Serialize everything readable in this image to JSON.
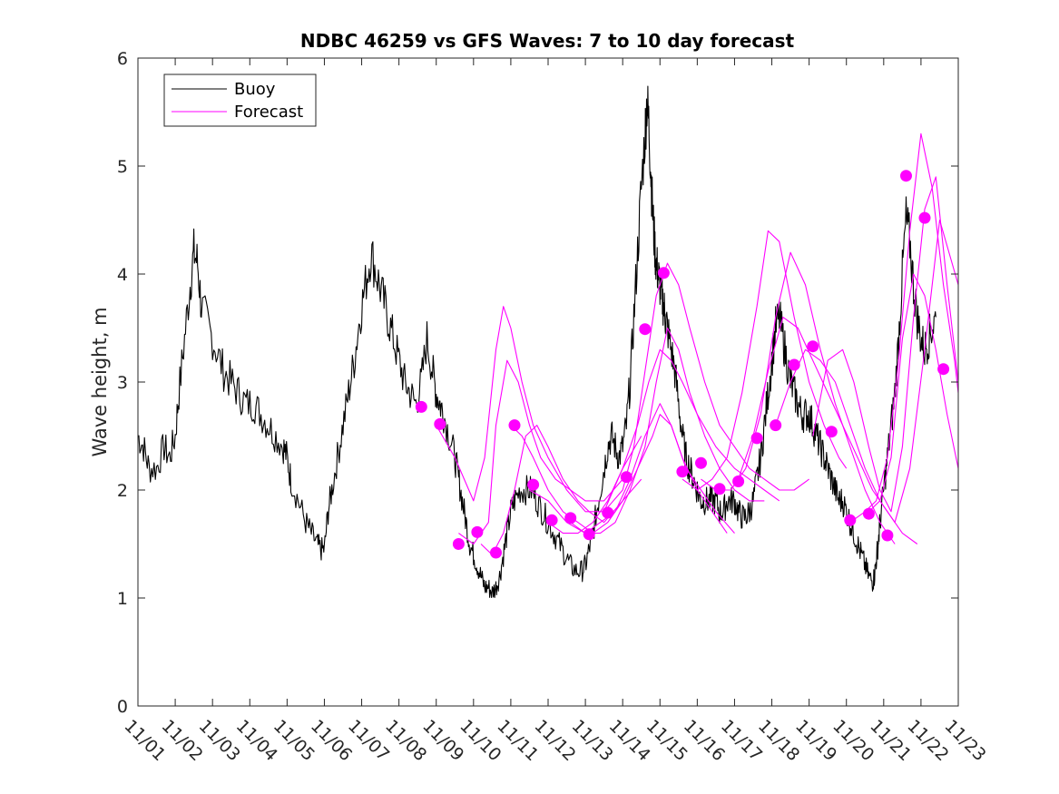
{
  "chart_data": {
    "type": "line",
    "title": "NDBC 46259 vs GFS Waves: 7 to 10 day forecast",
    "xlabel": "",
    "ylabel": "Wave height, m",
    "x_unit": "day of November (1 = 11/01 00:00)",
    "xlim": [
      1,
      23
    ],
    "ylim": [
      0,
      6
    ],
    "yticks": [
      0,
      1,
      2,
      3,
      4,
      5,
      6
    ],
    "xtick_labels": [
      "11/01",
      "11/02",
      "11/03",
      "11/04",
      "11/05",
      "11/06",
      "11/07",
      "11/08",
      "11/09",
      "11/10",
      "11/11",
      "11/12",
      "11/13",
      "11/14",
      "11/15",
      "11/16",
      "11/17",
      "11/18",
      "11/19",
      "11/20",
      "11/21",
      "11/22",
      "11/23"
    ],
    "grid": false,
    "legend": {
      "position": "top-left",
      "entries": [
        "Buoy",
        "Forecast"
      ]
    },
    "colors": {
      "buoy": "#000000",
      "forecast": "#ff00ff",
      "axes": "#262626"
    },
    "buoy": {
      "name": "Buoy",
      "x": [
        1.0,
        1.15,
        1.3,
        1.5,
        1.7,
        1.85,
        2.0,
        2.1,
        2.25,
        2.4,
        2.5,
        2.6,
        2.7,
        2.9,
        3.1,
        3.3,
        3.5,
        3.7,
        3.9,
        4.1,
        4.3,
        4.5,
        4.7,
        4.9,
        5.0,
        5.1,
        5.3,
        5.5,
        5.65,
        5.8,
        5.9,
        6.0,
        6.1,
        6.2,
        6.35,
        6.5,
        6.65,
        6.8,
        6.95,
        7.1,
        7.25,
        7.4,
        7.55,
        7.7,
        7.85,
        8.0,
        8.15,
        8.3,
        8.45,
        8.6,
        8.75,
        8.9,
        9.0,
        9.1,
        9.2,
        9.35,
        9.5,
        9.6,
        9.7,
        9.8,
        9.9,
        10.0,
        10.1,
        10.2,
        10.3,
        10.4,
        10.5,
        10.6,
        10.7,
        10.8,
        10.9,
        11.0,
        11.1,
        11.25,
        11.4,
        11.55,
        11.7,
        11.85,
        12.0,
        12.15,
        12.3,
        12.45,
        12.6,
        12.75,
        12.9,
        13.0,
        13.1,
        13.2,
        13.3,
        13.4,
        13.5,
        13.6,
        13.7,
        13.8,
        13.9,
        14.0,
        14.1,
        14.2,
        14.3,
        14.4,
        14.5,
        14.6,
        14.65,
        14.7,
        14.75,
        14.8,
        14.85,
        14.9,
        14.95,
        15.0,
        15.05,
        15.1,
        15.15,
        15.2,
        15.3,
        15.4,
        15.5,
        15.6,
        15.7,
        15.8,
        15.9,
        16.0,
        16.1,
        16.2,
        16.3,
        16.4,
        16.5,
        16.6,
        16.7,
        16.8,
        16.9,
        17.0,
        17.1,
        17.2,
        17.3,
        17.4,
        17.5,
        17.6,
        17.7,
        17.8,
        17.9,
        18.0,
        18.1,
        18.2,
        18.3,
        18.4,
        18.5,
        18.6,
        18.7,
        18.8,
        18.9,
        19.0,
        19.1,
        19.2,
        19.3,
        19.4,
        19.5,
        19.6,
        19.7,
        19.8,
        19.9,
        20.0,
        20.1,
        20.2,
        20.3,
        20.4,
        20.5,
        20.6,
        20.7,
        20.75,
        20.8,
        20.85,
        20.9,
        21.0,
        21.1,
        21.2,
        21.3,
        21.4,
        21.5,
        21.6,
        21.7,
        21.8,
        21.9,
        22.0,
        22.1,
        22.2,
        22.3,
        22.4
      ],
      "y": [
        2.5,
        2.4,
        2.2,
        2.2,
        2.4,
        2.3,
        2.5,
        2.9,
        3.4,
        3.9,
        4.2,
        4.1,
        3.7,
        3.5,
        3.3,
        3.1,
        3.0,
        2.9,
        2.8,
        2.8,
        2.7,
        2.6,
        2.5,
        2.4,
        2.3,
        2.1,
        1.9,
        1.7,
        1.6,
        1.5,
        1.45,
        1.45,
        1.8,
        2.0,
        2.3,
        2.6,
        2.9,
        3.2,
        3.6,
        3.9,
        4.2,
        4.0,
        3.8,
        3.6,
        3.4,
        3.2,
        3.0,
        2.9,
        2.8,
        3.0,
        3.4,
        3.1,
        2.9,
        2.8,
        2.7,
        2.5,
        2.3,
        2.1,
        1.9,
        1.7,
        1.5,
        1.4,
        1.3,
        1.2,
        1.1,
        1.1,
        1.05,
        1.1,
        1.2,
        1.4,
        1.6,
        1.8,
        1.9,
        2.0,
        2.0,
        2.0,
        1.9,
        1.8,
        1.7,
        1.6,
        1.5,
        1.4,
        1.3,
        1.25,
        1.25,
        1.3,
        1.45,
        1.6,
        1.8,
        2.0,
        2.2,
        2.4,
        2.5,
        2.4,
        2.3,
        2.4,
        2.6,
        3.0,
        3.6,
        4.2,
        4.8,
        5.3,
        5.6,
        5.4,
        5.0,
        4.6,
        4.3,
        4.1,
        4.0,
        3.9,
        3.8,
        3.7,
        3.6,
        3.5,
        3.3,
        3.1,
        2.8,
        2.5,
        2.3,
        2.2,
        2.1,
        2.0,
        1.9,
        1.9,
        1.9,
        1.9,
        1.9,
        1.8,
        1.8,
        1.9,
        1.9,
        1.9,
        1.8,
        1.75,
        1.75,
        1.8,
        1.9,
        2.1,
        2.3,
        2.6,
        2.9,
        3.2,
        3.5,
        3.6,
        3.4,
        3.2,
        3.0,
        2.9,
        2.8,
        2.7,
        2.7,
        2.7,
        2.6,
        2.5,
        2.4,
        2.3,
        2.2,
        2.1,
        2.0,
        1.9,
        1.9,
        1.8,
        1.7,
        1.6,
        1.5,
        1.4,
        1.3,
        1.2,
        1.15,
        1.2,
        1.35,
        1.5,
        1.7,
        2.0,
        2.3,
        2.6,
        2.9,
        3.4,
        4.0,
        4.5,
        4.3,
        3.9,
        3.6,
        3.4,
        3.3,
        3.4,
        3.5,
        3.6
      ]
    },
    "forecasts": [
      {
        "x": [
          9.0,
          9.5,
          10.0,
          10.3,
          10.6,
          10.8,
          11.0,
          11.3,
          11.6,
          12.0,
          12.5,
          13.0,
          13.5,
          14.0,
          14.5
        ],
        "y": [
          2.6,
          2.3,
          1.9,
          2.3,
          3.3,
          3.7,
          3.5,
          3.0,
          2.6,
          2.3,
          2.0,
          1.8,
          1.8,
          2.2,
          2.5
        ]
      },
      {
        "x": [
          9.6,
          10.0,
          10.4,
          10.6,
          10.9,
          11.2,
          11.5,
          11.8,
          12.2,
          12.6,
          13.0,
          13.5,
          14.0
        ],
        "y": [
          1.6,
          1.5,
          1.7,
          2.6,
          3.2,
          3.0,
          2.6,
          2.3,
          2.1,
          2.0,
          1.9,
          1.9,
          2.1
        ]
      },
      {
        "x": [
          10.2,
          10.5,
          10.8,
          11.1,
          11.4,
          11.7,
          12.0,
          12.4,
          12.8,
          13.1,
          13.5,
          14.0,
          14.5
        ],
        "y": [
          1.5,
          1.4,
          1.6,
          2.0,
          2.5,
          2.6,
          2.4,
          2.1,
          1.9,
          1.8,
          1.7,
          1.9,
          2.1
        ]
      },
      {
        "x": [
          11.0,
          11.3,
          11.6,
          12.0,
          12.4,
          12.8,
          13.2,
          13.6,
          14.0,
          14.4,
          14.8,
          15.0,
          15.3,
          15.6,
          16.0,
          16.4,
          16.8
        ],
        "y": [
          2.6,
          2.5,
          2.3,
          2.0,
          1.8,
          1.7,
          1.6,
          1.7,
          1.9,
          2.2,
          2.5,
          2.7,
          2.6,
          2.3,
          2.0,
          1.8,
          1.6
        ]
      },
      {
        "x": [
          11.5,
          12.0,
          12.5,
          13.0,
          13.4,
          13.8,
          14.2,
          14.6,
          15.0,
          15.3,
          15.7,
          16.1,
          16.5,
          17.0
        ],
        "y": [
          2.0,
          1.9,
          1.7,
          1.6,
          1.7,
          1.8,
          2.1,
          2.5,
          2.8,
          2.6,
          2.2,
          2.0,
          1.8,
          1.6
        ]
      },
      {
        "x": [
          12.0,
          12.4,
          12.8,
          13.2,
          13.6,
          14.0,
          14.4,
          14.7,
          15.0,
          15.3,
          15.6,
          16.0,
          16.5,
          17.0,
          17.4,
          17.8,
          18.2
        ],
        "y": [
          1.7,
          1.6,
          1.6,
          1.7,
          1.9,
          2.2,
          2.6,
          3.0,
          3.3,
          3.2,
          3.0,
          2.7,
          2.4,
          2.2,
          2.1,
          2.0,
          1.9
        ]
      },
      {
        "x": [
          12.6,
          13.0,
          13.4,
          13.8,
          14.2,
          14.6,
          14.9,
          15.2,
          15.5,
          15.8,
          16.2,
          16.6,
          17.0,
          17.4,
          17.8
        ],
        "y": [
          1.7,
          1.6,
          1.6,
          1.7,
          2.0,
          2.4,
          3.0,
          3.5,
          3.3,
          2.9,
          2.5,
          2.2,
          2.0,
          1.9,
          1.9
        ]
      },
      {
        "x": [
          13.5,
          14.0,
          14.3,
          14.6,
          14.9,
          15.2,
          15.5,
          15.8,
          16.2,
          16.6,
          17.0,
          17.4,
          17.8,
          18.2,
          18.6,
          19.0
        ],
        "y": [
          1.8,
          2.0,
          2.4,
          3.1,
          3.8,
          4.1,
          3.9,
          3.5,
          3.0,
          2.6,
          2.4,
          2.2,
          2.1,
          2.0,
          2.0,
          2.1
        ]
      },
      {
        "x": [
          15.6,
          16.0,
          16.4,
          16.8,
          17.2,
          17.6,
          17.9,
          18.2,
          18.6,
          19.0,
          19.4,
          19.8,
          20.0
        ],
        "y": [
          2.1,
          2.0,
          2.1,
          2.3,
          2.9,
          3.7,
          4.4,
          4.3,
          3.6,
          3.0,
          2.6,
          2.3,
          2.2
        ]
      },
      {
        "x": [
          16.1,
          16.5,
          16.9,
          17.3,
          17.7,
          18.1,
          18.5,
          18.9,
          19.3,
          19.7,
          20.1,
          20.5,
          20.9,
          21.3
        ],
        "y": [
          2.1,
          2.0,
          2.0,
          2.2,
          2.7,
          3.6,
          4.2,
          3.9,
          3.3,
          2.8,
          2.4,
          2.0,
          1.7,
          1.5
        ]
      },
      {
        "x": [
          17.1,
          17.5,
          17.9,
          18.3,
          18.7,
          19.1,
          19.5,
          19.9,
          20.3,
          20.7,
          21.1,
          21.5,
          21.9
        ],
        "y": [
          2.1,
          2.5,
          3.1,
          3.6,
          3.5,
          3.2,
          2.9,
          2.6,
          2.3,
          2.0,
          1.8,
          1.6,
          1.5
        ]
      },
      {
        "x": [
          18.1,
          18.5,
          18.9,
          19.3,
          19.7,
          20.1,
          20.5,
          20.9,
          21.3,
          21.7,
          22.1,
          22.5,
          23.0
        ],
        "y": [
          2.6,
          3.0,
          3.3,
          3.2,
          3.0,
          2.6,
          2.2,
          1.9,
          1.7,
          2.2,
          3.3,
          4.5,
          3.9
        ]
      },
      {
        "x": [
          19.1,
          19.5,
          19.9,
          20.2,
          20.6,
          20.9,
          21.2,
          21.5,
          21.8,
          22.1,
          22.4,
          22.7,
          23.0
        ],
        "y": [
          2.5,
          3.2,
          3.3,
          3.0,
          2.4,
          2.0,
          1.8,
          2.4,
          3.6,
          4.6,
          4.9,
          3.9,
          3.0
        ]
      },
      {
        "x": [
          20.1,
          20.5,
          20.8,
          21.1,
          21.4,
          21.7,
          22.0,
          22.3,
          22.6,
          22.9,
          23.0
        ],
        "y": [
          1.7,
          1.8,
          1.9,
          2.3,
          3.2,
          4.4,
          5.3,
          4.8,
          3.9,
          3.2,
          2.9
        ]
      },
      {
        "x": [
          20.6,
          20.9,
          21.2,
          21.5,
          21.8,
          22.1,
          22.4,
          22.7,
          23.0
        ],
        "y": [
          1.8,
          1.9,
          2.3,
          3.4,
          4.0,
          3.8,
          3.3,
          2.7,
          2.2
        ]
      }
    ],
    "forecast_markers": {
      "x": [
        8.6,
        9.1,
        9.6,
        10.1,
        10.6,
        11.1,
        11.6,
        12.1,
        12.6,
        13.1,
        13.6,
        14.1,
        14.6,
        15.1,
        15.6,
        16.1,
        16.6,
        17.1,
        17.6,
        18.1,
        18.6,
        19.1,
        19.6,
        20.1,
        20.6,
        21.1,
        21.6,
        22.1,
        22.6
      ],
      "y": [
        2.77,
        2.61,
        1.5,
        1.61,
        1.42,
        2.6,
        2.05,
        1.72,
        1.74,
        1.59,
        1.79,
        2.12,
        3.49,
        4.01,
        2.17,
        2.25,
        2.01,
        2.08,
        2.48,
        2.6,
        3.16,
        3.33,
        2.54,
        1.72,
        1.78,
        1.58,
        4.91,
        4.52,
        3.12
      ]
    }
  }
}
